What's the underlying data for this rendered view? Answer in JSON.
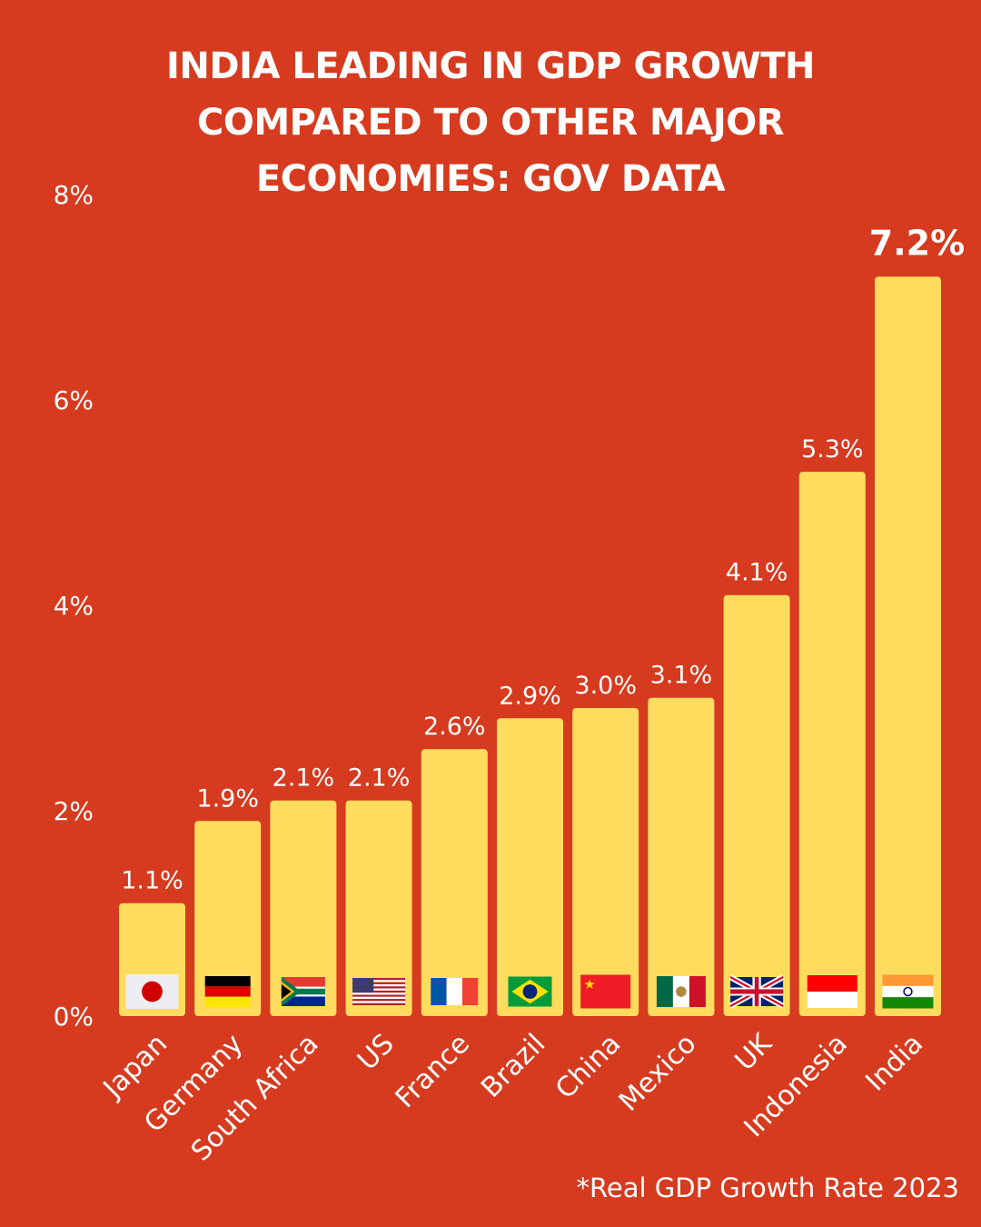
{
  "title_lines": [
    "INDIA LEADING IN GDP GROWTH",
    "COMPARED TO OTHER MAJOR",
    "ECONOMIES: GOV DATA"
  ],
  "footnote": "*Real GDP Growth Rate 2023",
  "colors": {
    "background": "#D63B1F",
    "bar": "#FFDC5E",
    "text": "#FFFFFF"
  },
  "chart_data": {
    "type": "bar",
    "title": "INDIA LEADING IN GDP GROWTH COMPARED TO OTHER MAJOR ECONOMIES: GOV DATA",
    "xlabel": "",
    "ylabel": "",
    "ylim": [
      0,
      8
    ],
    "yticks": [
      0,
      2,
      4,
      6,
      8
    ],
    "ytick_labels": [
      "0%",
      "2%",
      "4%",
      "6%",
      "8%"
    ],
    "grid": false,
    "categories": [
      "Japan",
      "Germany",
      "South Africa",
      "US",
      "France",
      "Brazil",
      "China",
      "Mexico",
      "UK",
      "Indonesia",
      "India"
    ],
    "values": [
      1.1,
      1.9,
      2.1,
      2.1,
      2.6,
      2.9,
      3.0,
      3.1,
      4.1,
      5.3,
      7.2
    ],
    "data_labels": [
      "1.1%",
      "1.9%",
      "2.1%",
      "2.1%",
      "2.6%",
      "2.9%",
      "3.0%",
      "3.1%",
      "4.1%",
      "5.3%",
      "7.2%"
    ],
    "flags": [
      "japan-flag",
      "germany-flag",
      "south-africa-flag",
      "us-flag",
      "france-flag",
      "brazil-flag",
      "china-flag",
      "mexico-flag",
      "uk-flag",
      "indonesia-flag",
      "india-flag"
    ],
    "highlight": "India",
    "annotation": "*Real GDP Growth Rate 2023"
  }
}
